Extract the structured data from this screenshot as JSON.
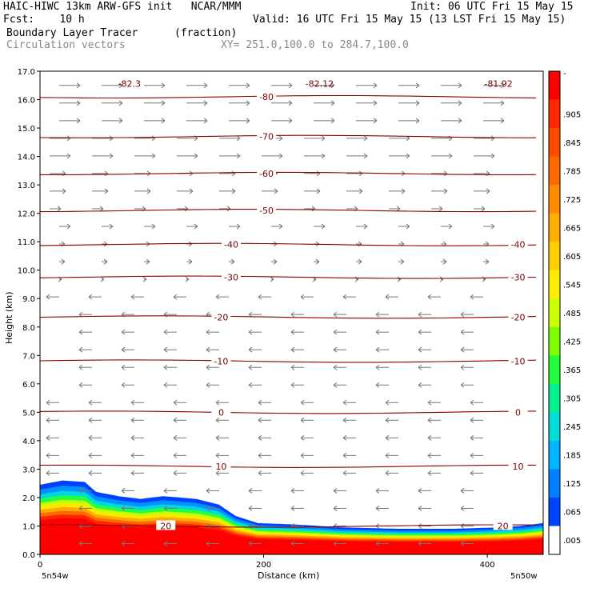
{
  "header": {
    "title_left": "HAIC-HIWC 13km ARW-GFS init   NCAR/MMM",
    "init": "Init: 06 UTC Fri 15 May 15",
    "fcst": "Fcst:    10 h",
    "valid": "Valid: 16 UTC Fri 15 May 15 (13 LST Fri 15 May 15)",
    "field": "Boundary Layer Tracer",
    "units": "(fraction)",
    "field2": "Circulation vectors",
    "xy": "XY= 251.0,100.0 to 284.7,100.0"
  },
  "chart_data": {
    "type": "heatmap",
    "xlabel": "Distance (km)",
    "ylabel": "Height (km)",
    "xlim": [
      0,
      450
    ],
    "ylim": [
      0,
      17
    ],
    "x_ticks": [
      "0",
      "200",
      "400"
    ],
    "x_end_labels": [
      "5n54w",
      "5n50w"
    ],
    "y_ticks": [
      "0.0",
      "1.0",
      "2.0",
      "3.0",
      "4.0",
      "5.0",
      "6.0",
      "7.0",
      "8.0",
      "9.0",
      "10.0",
      "11.0",
      "12.0",
      "13.0",
      "14.0",
      "15.0",
      "16.0",
      "17.0"
    ],
    "colorbar_labels": [
      "-",
      ".905",
      ".845",
      ".785",
      ".725",
      ".665",
      ".605",
      ".545",
      ".485",
      ".425",
      ".365",
      ".305",
      ".245",
      ".185",
      ".125",
      ".065",
      ".005"
    ],
    "colorbar_colors": [
      "#ff0000",
      "#ff2800",
      "#ff4a00",
      "#ff6a00",
      "#ff8c00",
      "#ffae00",
      "#ffd000",
      "#ffee00",
      "#ccff00",
      "#7dff00",
      "#22ff3a",
      "#00f090",
      "#00dcd8",
      "#00b4ff",
      "#0080ff",
      "#0044ff",
      "#ffffff"
    ],
    "temperature_contours": [
      {
        "label": "-80",
        "height": 16.1
      },
      {
        "label": "-70",
        "height": 14.7
      },
      {
        "label": "-60",
        "height": 13.4
      },
      {
        "label": "-50",
        "height": 12.1
      },
      {
        "label": "-40",
        "height": 10.9
      },
      {
        "label": "-30",
        "height": 9.75
      },
      {
        "label": "-20",
        "height": 8.35
      },
      {
        "label": "-10",
        "height": 6.8
      },
      {
        "label": "0",
        "height": 5.0
      },
      {
        "label": "10",
        "height": 3.1
      },
      {
        "label": "20",
        "height": 1.0
      }
    ],
    "min_labels": [
      {
        "label": "-82.3",
        "x": 80
      },
      {
        "label": "-82.12",
        "x": 250
      },
      {
        "label": "-81.92",
        "x": 410
      }
    ],
    "tracer_top_km": [
      {
        "x": 0,
        "top": 2.45
      },
      {
        "x": 20,
        "top": 2.6
      },
      {
        "x": 40,
        "top": 2.55
      },
      {
        "x": 50,
        "top": 2.2
      },
      {
        "x": 70,
        "top": 2.05
      },
      {
        "x": 90,
        "top": 1.95
      },
      {
        "x": 110,
        "top": 2.05
      },
      {
        "x": 140,
        "top": 1.95
      },
      {
        "x": 160,
        "top": 1.75
      },
      {
        "x": 175,
        "top": 1.35
      },
      {
        "x": 195,
        "top": 1.1
      },
      {
        "x": 230,
        "top": 1.05
      },
      {
        "x": 270,
        "top": 0.95
      },
      {
        "x": 320,
        "top": 0.9
      },
      {
        "x": 370,
        "top": 0.9
      },
      {
        "x": 410,
        "top": 0.95
      },
      {
        "x": 430,
        "top": 1.0
      },
      {
        "x": 450,
        "top": 1.1
      }
    ]
  }
}
